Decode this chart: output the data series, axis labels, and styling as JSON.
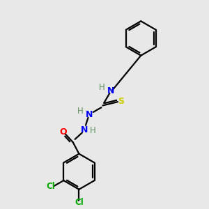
{
  "bg_color": "#e8e8e8",
  "bond_color": "#000000",
  "N_color": "#0000ff",
  "O_color": "#ff0000",
  "S_color": "#cccc00",
  "Cl_color": "#00aa00",
  "H_label_color": "#5f8f5f",
  "figsize": [
    3.0,
    3.0
  ],
  "dpi": 100,
  "xlim": [
    0,
    10
  ],
  "ylim": [
    0,
    10
  ]
}
